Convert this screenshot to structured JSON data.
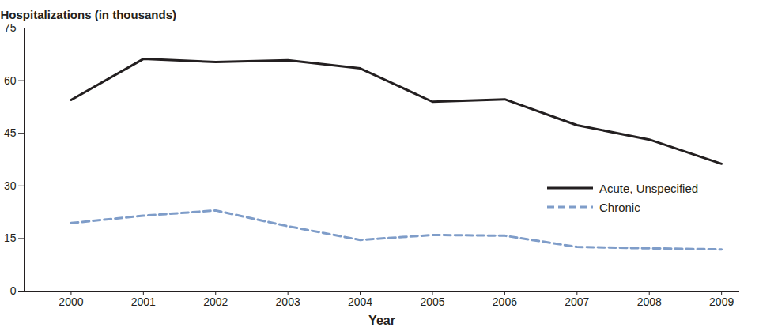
{
  "chart_data": {
    "type": "line",
    "x_label": "Year",
    "y_label": "Hospitalizations (in thousands)",
    "x": [
      2000,
      2001,
      2002,
      2003,
      2004,
      2005,
      2006,
      2007,
      2008,
      2009
    ],
    "series": [
      {
        "name": "Acute, Unspecified",
        "color": "#231f20",
        "line_style": "solid",
        "values": [
          54.5,
          66.2,
          65.3,
          65.8,
          63.5,
          54.0,
          54.7,
          47.3,
          43.2,
          36.3
        ]
      },
      {
        "name": "Chronic",
        "color": "#7f9dc9",
        "line_style": "dashed",
        "values": [
          19.4,
          21.5,
          23.0,
          18.5,
          14.6,
          16.0,
          15.8,
          12.6,
          12.2,
          11.9
        ]
      }
    ],
    "xlim": [
      1999.35,
      2009.25
    ],
    "xticks": [
      2000,
      2001,
      2002,
      2003,
      2004,
      2005,
      2006,
      2007,
      2008,
      2009
    ],
    "ylim": [
      0,
      75
    ],
    "yticks": [
      0,
      15,
      30,
      45,
      60,
      75
    ],
    "grid": false,
    "legend": "right"
  }
}
